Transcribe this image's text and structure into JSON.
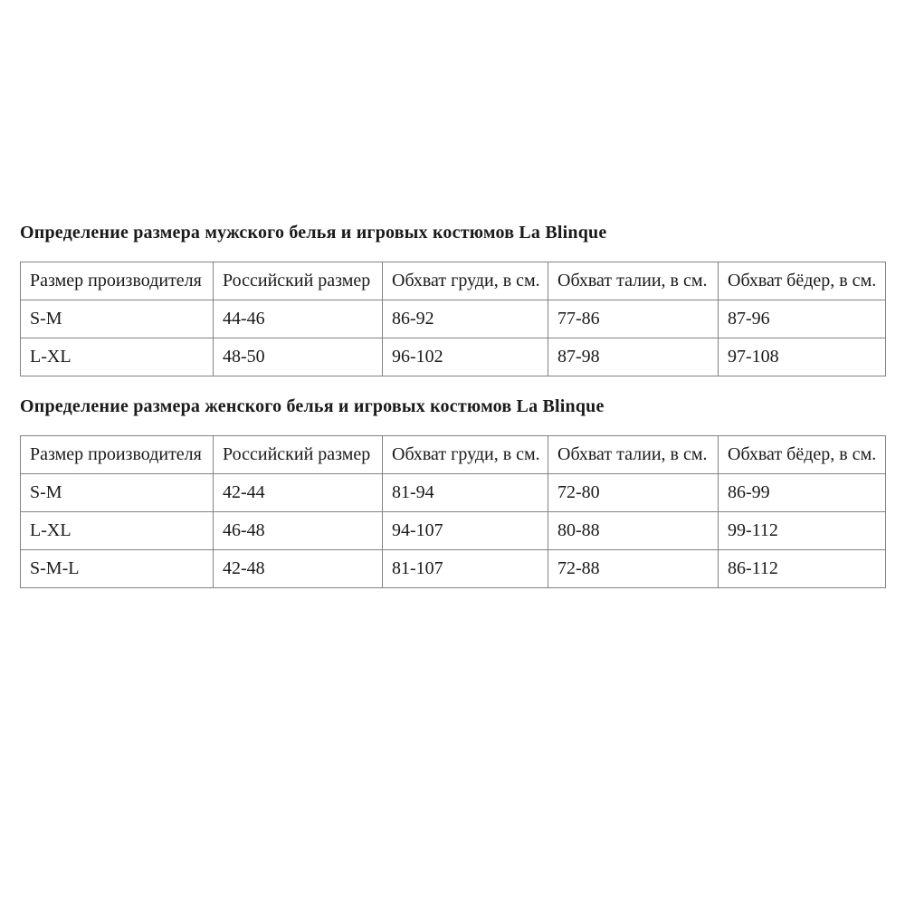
{
  "page": {
    "background": "#ffffff",
    "text_color": "#1a1a1a",
    "table_border_color": "#828282"
  },
  "sections": [
    {
      "heading": "Определение размера мужского белья и игровых костюмов La Blinque",
      "table": {
        "columns": [
          "Размер производителя",
          "Российский размер",
          "Обхват груди, в см.",
          "Обхват талии, в см.",
          "Обхват бёдер, в см."
        ],
        "rows": [
          [
            "S-M",
            "44-46",
            "86-92",
            "77-86",
            "87-96"
          ],
          [
            "L-XL",
            "48-50",
            "96-102",
            "87-98",
            "97-108"
          ]
        ]
      }
    },
    {
      "heading": "Определение размера женского белья и игровых костюмов La Blinque",
      "table": {
        "columns": [
          "Размер производителя",
          "Российский размер",
          "Обхват груди, в см.",
          "Обхват талии, в см.",
          "Обхват бёдер, в см."
        ],
        "rows": [
          [
            "S-M",
            "42-44",
            "81-94",
            "72-80",
            "86-99"
          ],
          [
            "L-XL",
            "46-48",
            "94-107",
            "80-88",
            "99-112"
          ],
          [
            "S-M-L",
            "42-48",
            "81-107",
            "72-88",
            "86-112"
          ]
        ]
      }
    }
  ]
}
